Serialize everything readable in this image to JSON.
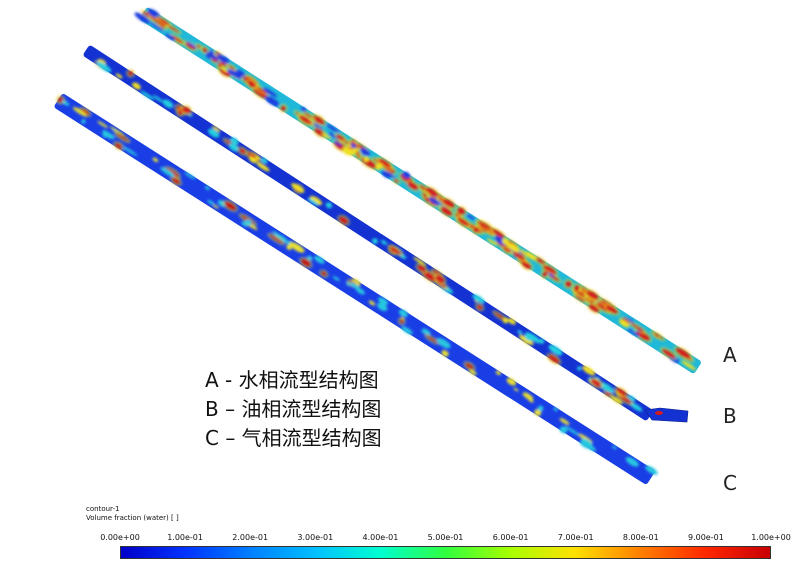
{
  "pipes": [
    {
      "label": "A",
      "colors": {
        "base": "#1fb8d8",
        "blob": "#d41a1a",
        "rim": "#f0e020",
        "spot": "#1a3ee0"
      }
    },
    {
      "label": "B",
      "colors": {
        "base": "#1432d2",
        "blob": "#d41a1a",
        "rim": "#f0e020",
        "spot": "#20d0e0"
      }
    },
    {
      "label": "C",
      "colors": {
        "base": "#1a3ee6",
        "blob": "#c81818",
        "rim": "#e8e030",
        "spot": "#28c8e0"
      }
    }
  ],
  "legend": {
    "lines": [
      "A - 水相流型结构图",
      "B – 油相流型结构图",
      "C – 气相流型结构图"
    ]
  },
  "colorbar": {
    "name": "contour-1",
    "quantity": "Volume fraction (water) [ ]",
    "min": 0.0,
    "max": 1.0,
    "ticks": [
      "0.00e+00",
      "1.00e-01",
      "2.00e-01",
      "3.00e-01",
      "4.00e-01",
      "5.00e-01",
      "6.00e-01",
      "7.00e-01",
      "8.00e-01",
      "9.00e-01",
      "1.00e+00"
    ]
  }
}
